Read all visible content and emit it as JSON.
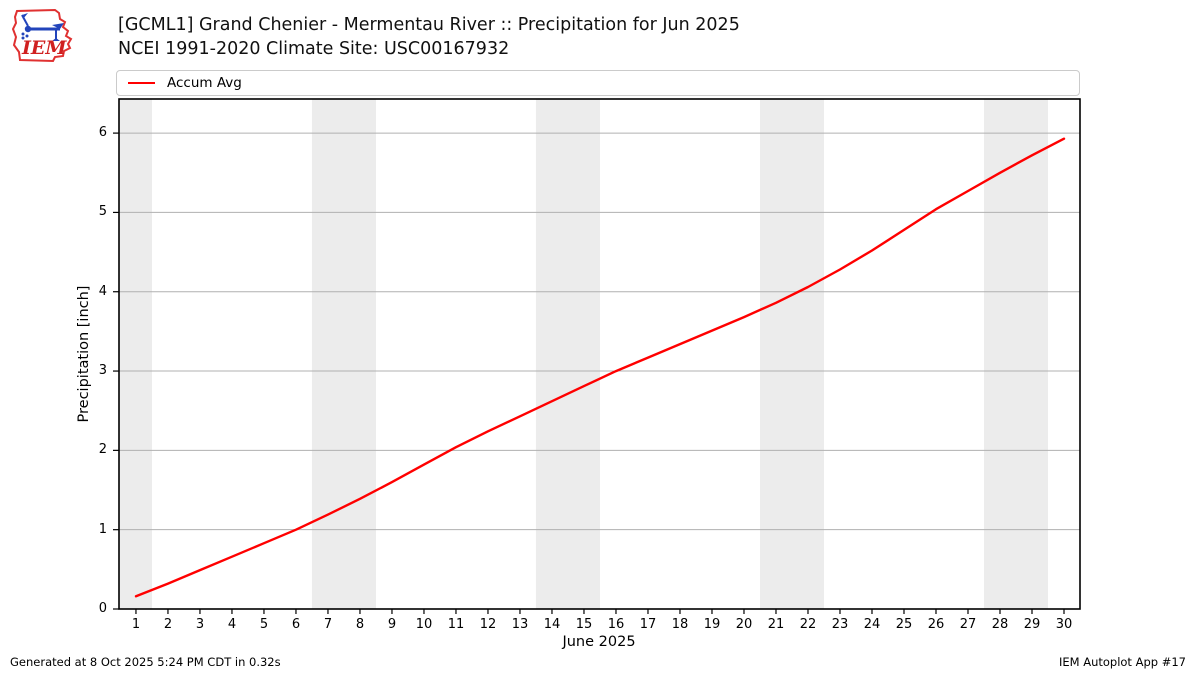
{
  "header": {
    "title": "[GCML1] Grand Chenier - Mermentau River :: Precipitation for Jun 2025",
    "subtitle": "NCEI 1991-2020 Climate Site: USC00167932",
    "logo_text": "IEM"
  },
  "legend": {
    "items": [
      {
        "label": "Accum Avg",
        "color": "#ff0000"
      }
    ]
  },
  "footer": {
    "left": "Generated at 8 Oct 2025 5:24 PM CDT in 0.32s",
    "right": "IEM Autoplot App #17"
  },
  "chart_data": {
    "type": "line",
    "title": "[GCML1] Grand Chenier - Mermentau River :: Precipitation for Jun 2025",
    "xlabel": "June 2025",
    "ylabel": "Precipitation [inch]",
    "x": [
      1,
      2,
      3,
      4,
      5,
      6,
      7,
      8,
      9,
      10,
      11,
      12,
      13,
      14,
      15,
      16,
      17,
      18,
      19,
      20,
      21,
      22,
      23,
      24,
      25,
      26,
      27,
      28,
      29,
      30
    ],
    "series": [
      {
        "name": "Accum Avg",
        "color": "#ff0000",
        "values": [
          0.16,
          0.32,
          0.49,
          0.66,
          0.83,
          1.0,
          1.19,
          1.39,
          1.6,
          1.82,
          2.04,
          2.24,
          2.43,
          2.62,
          2.81,
          3.0,
          3.17,
          3.34,
          3.51,
          3.68,
          3.86,
          4.06,
          4.28,
          4.52,
          4.78,
          5.04,
          5.27,
          5.5,
          5.72,
          5.93
        ]
      }
    ],
    "xticks": [
      1,
      2,
      3,
      4,
      5,
      6,
      7,
      8,
      9,
      10,
      11,
      12,
      13,
      14,
      15,
      16,
      17,
      18,
      19,
      20,
      21,
      22,
      23,
      24,
      25,
      26,
      27,
      28,
      29,
      30
    ],
    "yticks": [
      0,
      1,
      2,
      3,
      4,
      5,
      6
    ],
    "xlim": [
      0.47,
      30.5
    ],
    "ylim": [
      0,
      6.43
    ],
    "grid": "horizontal",
    "legend_position": "top",
    "grid_color": "#b0b0b0",
    "band_color": "#ececec",
    "weekend_bands": [
      [
        0.47,
        1.5
      ],
      [
        6.5,
        8.5
      ],
      [
        13.5,
        15.5
      ],
      [
        20.5,
        22.5
      ],
      [
        27.5,
        29.5
      ]
    ]
  }
}
